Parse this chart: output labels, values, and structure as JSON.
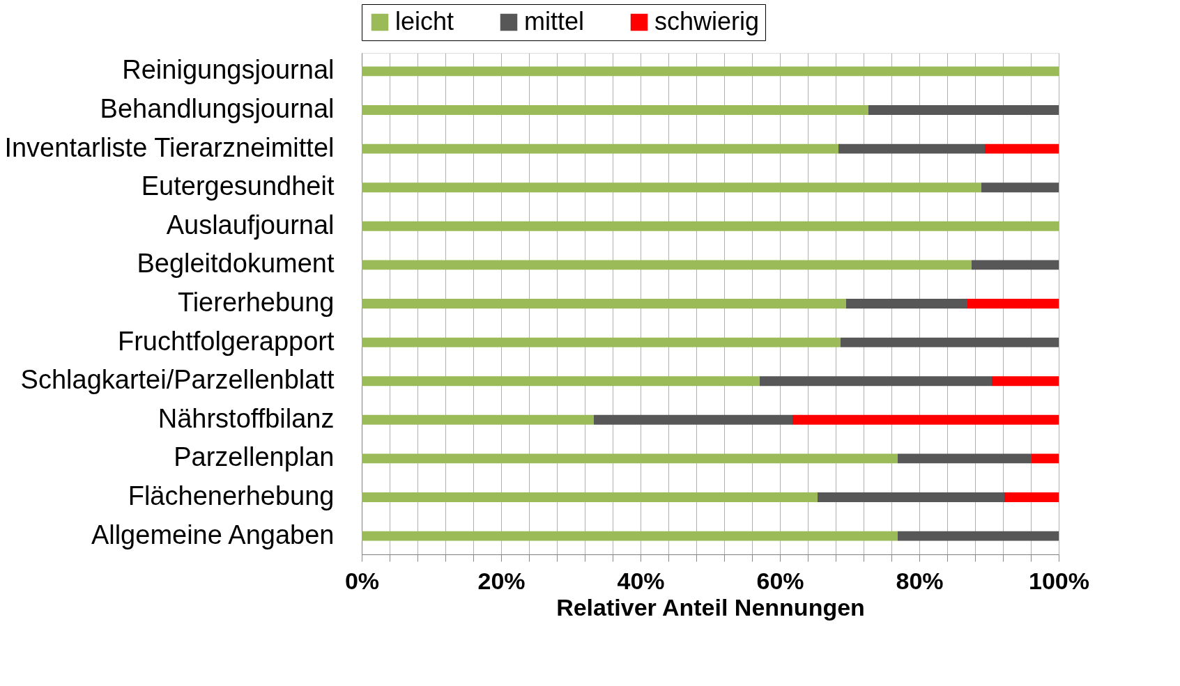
{
  "chart_data": {
    "type": "bar",
    "orientation": "horizontal",
    "stacked": true,
    "xlabel": "Relativer Anteil Nennungen",
    "categories": [
      "Reinigungsjournal",
      "Behandlungsjournal",
      "Inventarliste Tierarzneimittel",
      "Eutergesundheit",
      "Auslaufjournal",
      "Begleitdokument",
      "Tiererhebung",
      "Fruchtfolgerapport",
      "Schlagkartei/Parzellenblatt",
      "Nährstoffbilanz",
      "Parzellenplan",
      "Flächenerhebung",
      "Allgemeine Angaben"
    ],
    "series": [
      {
        "name": "leicht",
        "color": "#9bbb59",
        "values": [
          100,
          72.7,
          68.4,
          88.9,
          100,
          87.5,
          69.5,
          68.7,
          57.1,
          33.3,
          76.9,
          65.4,
          76.9
        ]
      },
      {
        "name": "mittel",
        "color": "#575757",
        "values": [
          null,
          27.3,
          21.0,
          11.1,
          null,
          12.5,
          17.4,
          31.3,
          33.3,
          28.5,
          19.2,
          26.8,
          23.1
        ]
      },
      {
        "name": "schwierig",
        "color": "#ff0000",
        "values": [
          null,
          null,
          10.6,
          null,
          null,
          null,
          13.1,
          null,
          9.6,
          38.2,
          3.9,
          7.8,
          null
        ]
      }
    ],
    "xlim": [
      0,
      100
    ],
    "xticks": [
      {
        "value": 0,
        "label": "0%"
      },
      {
        "value": 4,
        "label": null
      },
      {
        "value": 8,
        "label": null
      },
      {
        "value": 12,
        "label": null
      },
      {
        "value": 16,
        "label": null
      },
      {
        "value": 20,
        "label": "20%"
      },
      {
        "value": 24,
        "label": null
      },
      {
        "value": 28,
        "label": null
      },
      {
        "value": 32,
        "label": null
      },
      {
        "value": 36,
        "label": null
      },
      {
        "value": 40,
        "label": "40%"
      },
      {
        "value": 44,
        "label": null
      },
      {
        "value": 48,
        "label": null
      },
      {
        "value": 52,
        "label": null
      },
      {
        "value": 56,
        "label": null
      },
      {
        "value": 60,
        "label": "60%"
      },
      {
        "value": 64,
        "label": null
      },
      {
        "value": 68,
        "label": null
      },
      {
        "value": 72,
        "label": null
      },
      {
        "value": 76,
        "label": null
      },
      {
        "value": 80,
        "label": "80%"
      },
      {
        "value": 84,
        "label": null
      },
      {
        "value": 88,
        "label": null
      },
      {
        "value": 92,
        "label": null
      },
      {
        "value": 96,
        "label": null
      },
      {
        "value": 100,
        "label": "100%"
      }
    ],
    "grid": "x",
    "legend": "top"
  }
}
